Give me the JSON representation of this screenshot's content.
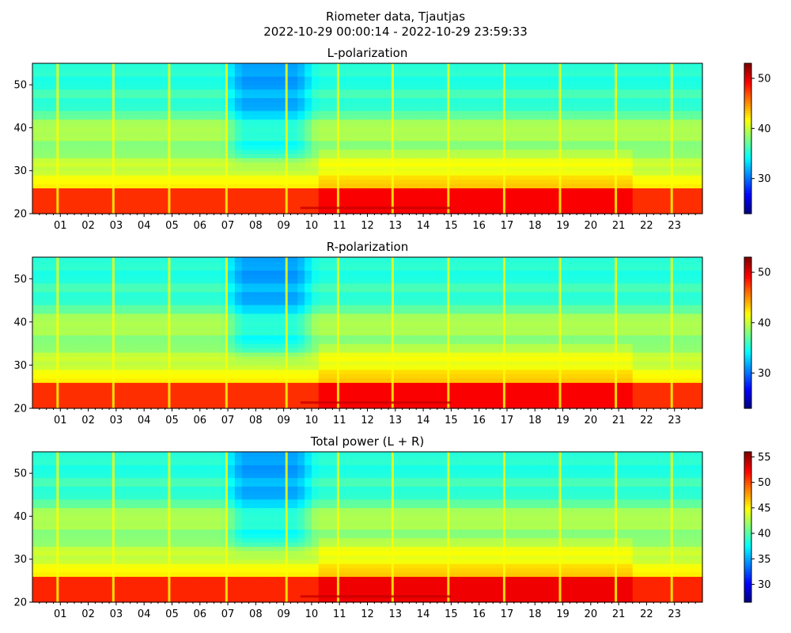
{
  "figure": {
    "title": "Riometer data, Tjautjas",
    "subtitle": "2022-10-29 00:00:14 - 2022-10-29 23:59:33"
  },
  "chart_data": [
    {
      "type": "heatmap",
      "title": "L-polarization",
      "xlabel": "",
      "ylabel": "",
      "x_tick_labels": [
        "01",
        "02",
        "03",
        "04",
        "05",
        "06",
        "07",
        "08",
        "09",
        "10",
        "11",
        "12",
        "13",
        "14",
        "15",
        "16",
        "17",
        "18",
        "19",
        "20",
        "21",
        "22",
        "23"
      ],
      "y_ticks": [
        20,
        30,
        40,
        50
      ],
      "ylim": [
        20,
        55
      ],
      "colorbar_ticks": [
        30,
        40,
        50
      ],
      "colorbar_range": [
        23,
        53
      ],
      "colormap": "jet",
      "grid": false
    },
    {
      "type": "heatmap",
      "title": "R-polarization",
      "xlabel": "",
      "ylabel": "",
      "x_tick_labels": [
        "01",
        "02",
        "03",
        "04",
        "05",
        "06",
        "07",
        "08",
        "09",
        "10",
        "11",
        "12",
        "13",
        "14",
        "15",
        "16",
        "17",
        "18",
        "19",
        "20",
        "21",
        "22",
        "23"
      ],
      "y_ticks": [
        20,
        30,
        40,
        50
      ],
      "ylim": [
        20,
        55
      ],
      "colorbar_ticks": [
        30,
        40,
        50
      ],
      "colorbar_range": [
        23,
        53
      ],
      "colormap": "jet",
      "grid": false
    },
    {
      "type": "heatmap",
      "title": "Total power (L + R)",
      "xlabel": "",
      "ylabel": "",
      "x_tick_labels": [
        "01",
        "02",
        "03",
        "04",
        "05",
        "06",
        "07",
        "08",
        "09",
        "10",
        "11",
        "12",
        "13",
        "14",
        "15",
        "16",
        "17",
        "18",
        "19",
        "20",
        "21",
        "22",
        "23"
      ],
      "y_ticks": [
        20,
        30,
        40,
        50
      ],
      "ylim": [
        20,
        55
      ],
      "colorbar_ticks": [
        30,
        35,
        40,
        45,
        50,
        55
      ],
      "colorbar_range": [
        26.5,
        56
      ],
      "colormap": "jet",
      "grid": false
    }
  ]
}
